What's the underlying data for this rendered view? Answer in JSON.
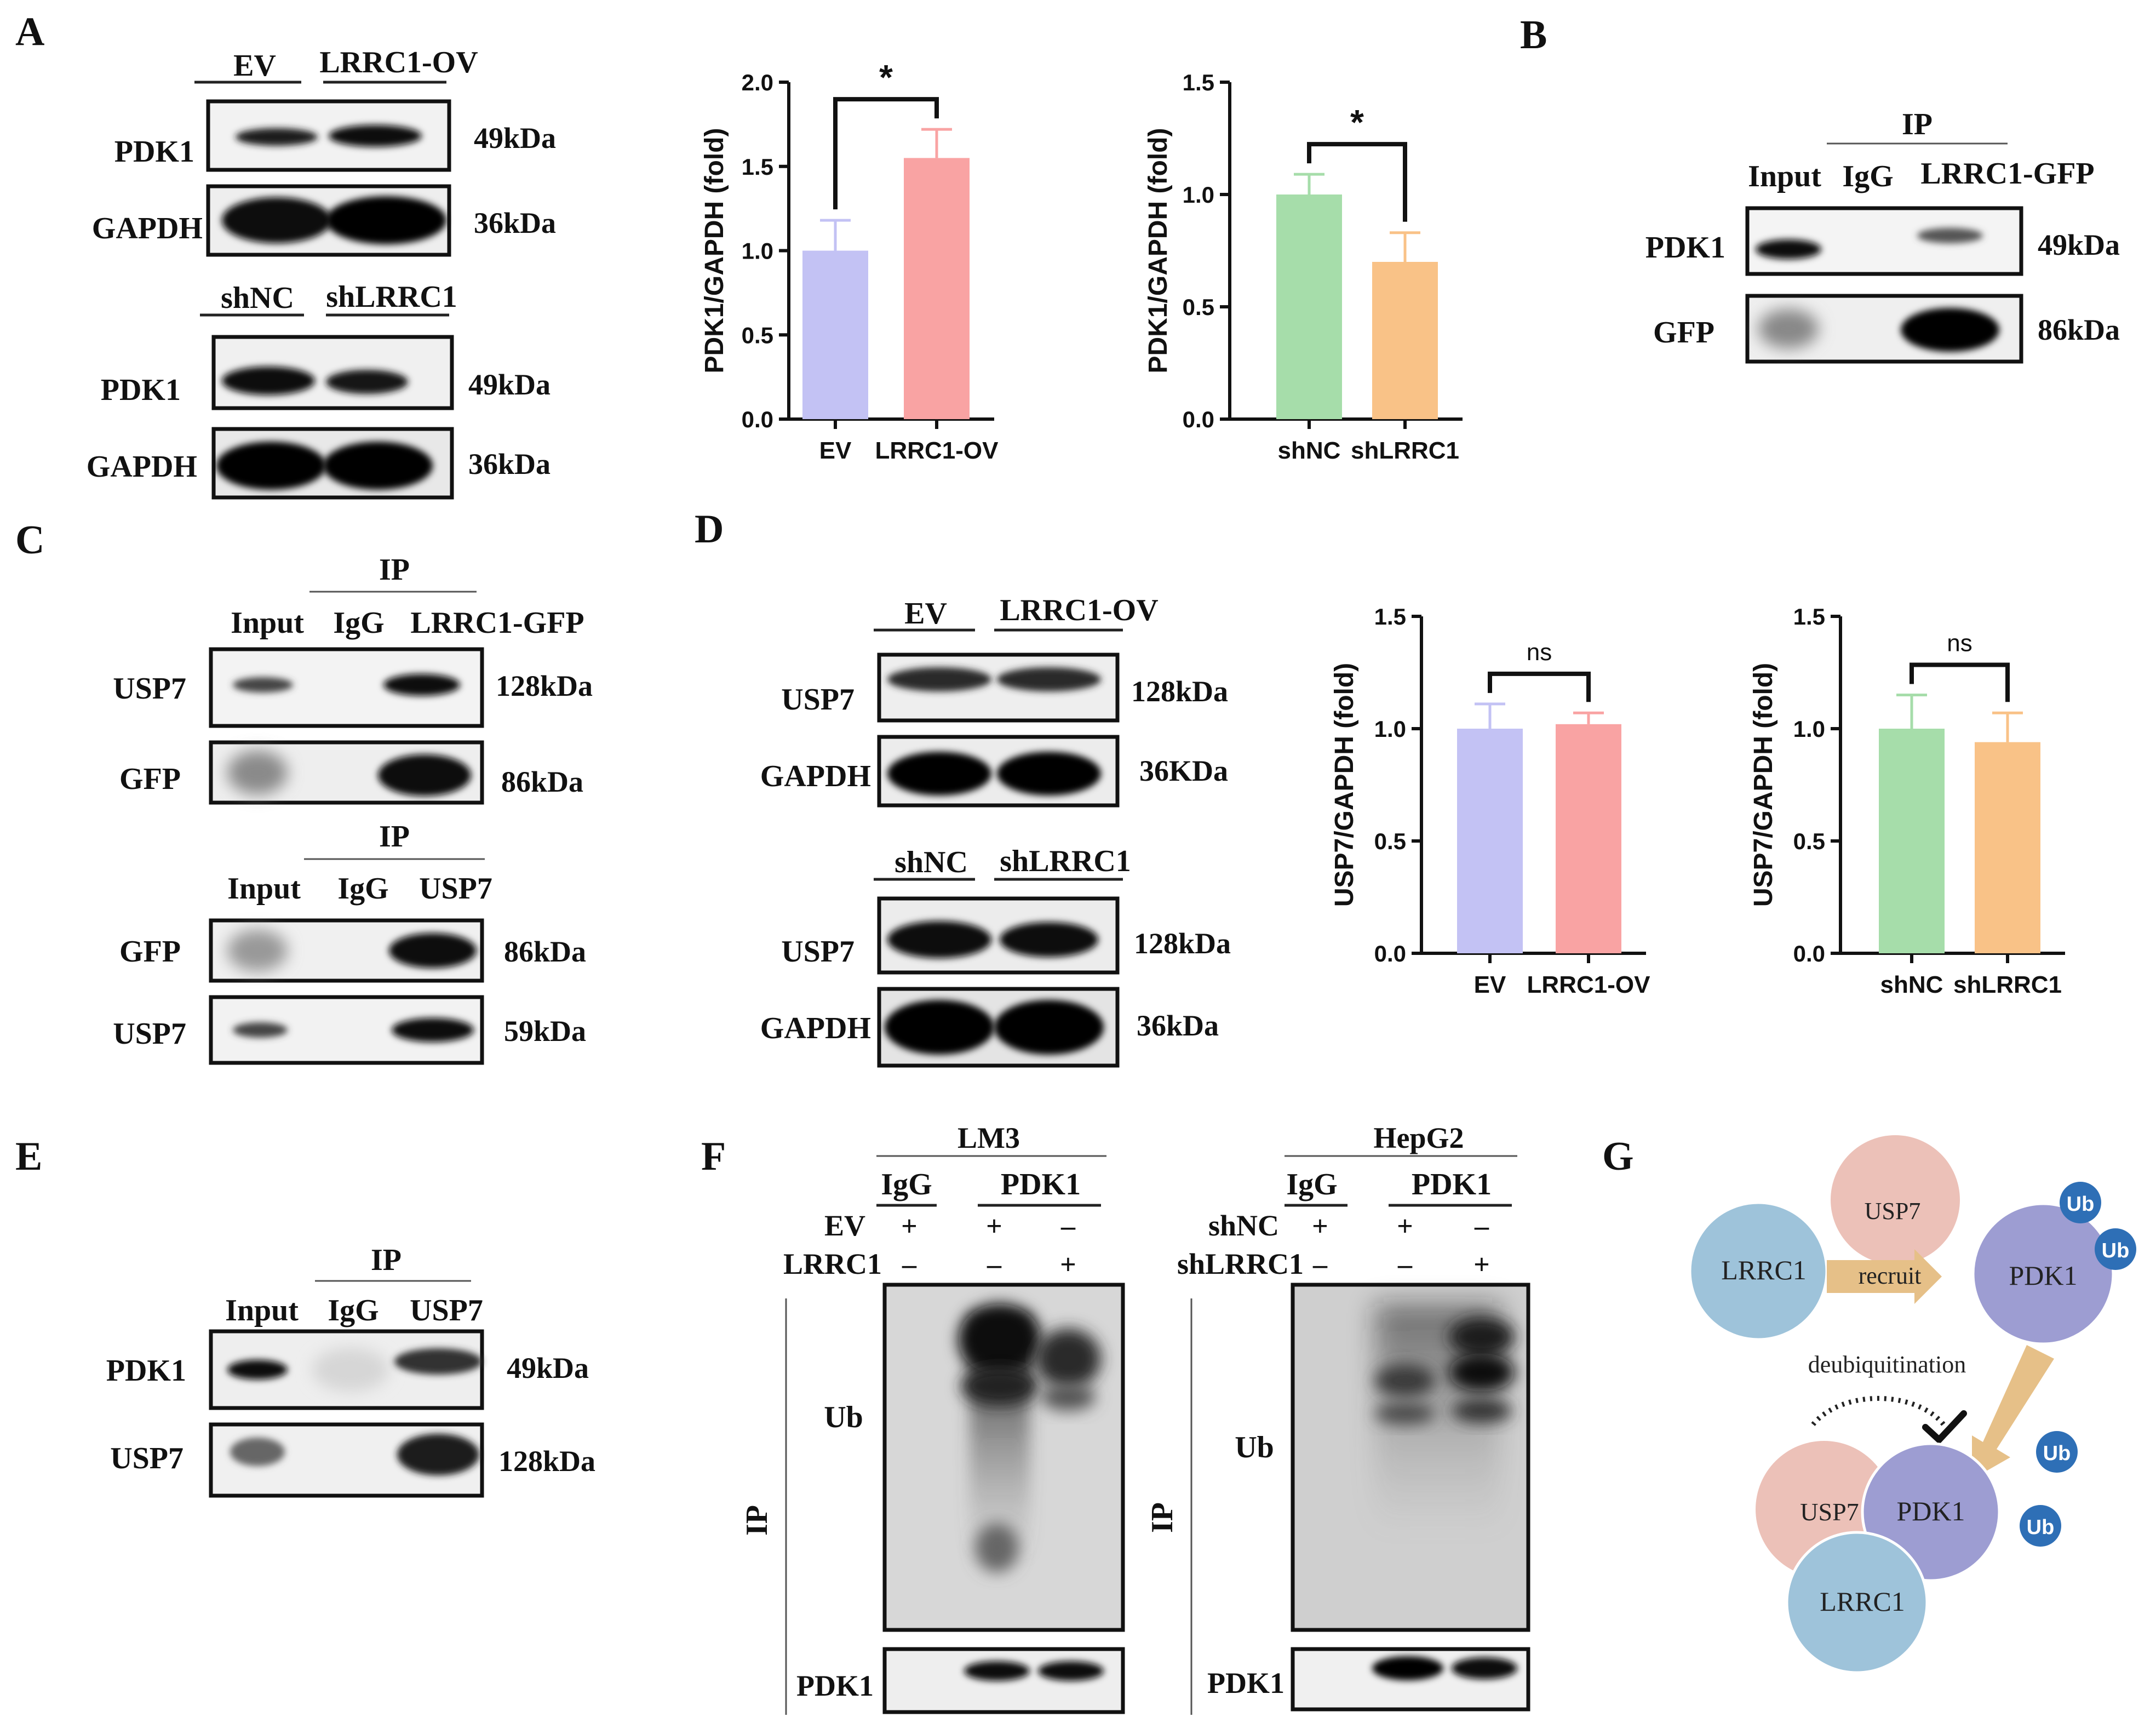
{
  "panel_letters": {
    "A": "A",
    "B": "B",
    "C": "C",
    "D": "D",
    "E": "E",
    "F": "F",
    "G": "G"
  },
  "panel_a": {
    "blot1": {
      "col1": "EV",
      "col2": "LRRC1-OV",
      "row1": "PDK1",
      "row2": "GAPDH",
      "size1": "49kDa",
      "size2": "36kDa"
    },
    "blot2": {
      "col1": "shNC",
      "col2": "shLRRC1",
      "row1": "PDK1",
      "row2": "GAPDH",
      "size1": "49kDa",
      "size2": "36kDa"
    }
  },
  "panel_b": {
    "ip": "IP",
    "lane1": "Input",
    "lane2": "IgG",
    "lane3": "LRRC1-GFP",
    "row1": "PDK1",
    "row2": "GFP",
    "size1": "49kDa",
    "size2": "86kDa"
  },
  "panel_c": {
    "blot1": {
      "ip": "IP",
      "lane1": "Input",
      "lane2": "IgG",
      "lane3": "LRRC1-GFP",
      "row1": "USP7",
      "row2": "GFP",
      "size1": "128kDa",
      "size2": "86kDa"
    },
    "blot2": {
      "ip": "IP",
      "lane1": "Input",
      "lane2": "IgG",
      "lane3": "USP7",
      "row1": "GFP",
      "row2": "USP7",
      "size1": "86kDa",
      "size2": "59kDa"
    }
  },
  "panel_d": {
    "blot1": {
      "col1": "EV",
      "col2": "LRRC1-OV",
      "row1": "USP7",
      "row2": "GAPDH",
      "size1": "128kDa",
      "size2": "36KDa"
    },
    "blot2": {
      "col1": "shNC",
      "col2": "shLRRC1",
      "row1": "USP7",
      "row2": "GAPDH",
      "size1": "128kDa",
      "size2": "36kDa"
    }
  },
  "panel_e": {
    "ip": "IP",
    "lane1": "Input",
    "lane2": "IgG",
    "lane3": "USP7",
    "row1": "PDK1",
    "row2": "USP7",
    "size1": "49kDa",
    "size2": "128kDa"
  },
  "panel_f": {
    "lm3": {
      "cell": "LM3",
      "ab1": "IgG",
      "ab2": "PDK1",
      "cond1": "EV",
      "cond2": "LRRC1",
      "cond1_signs": [
        "+",
        "+",
        "–"
      ],
      "cond2_signs": [
        "–",
        "–",
        "+"
      ],
      "ub": "Ub",
      "ip": "IP",
      "bottom": "PDK1"
    },
    "hepg2": {
      "cell": "HepG2",
      "ab1": "IgG",
      "ab2": "PDK1",
      "cond1": "shNC",
      "cond2": "shLRRC1",
      "cond1_signs": [
        "+",
        "+",
        "–"
      ],
      "cond2_signs": [
        "–",
        "–",
        "+"
      ],
      "ub": "Ub",
      "ip": "IP",
      "bottom": "PDK1"
    }
  },
  "panel_g": {
    "lrrc1": "LRRC1",
    "usp7": "USP7",
    "pdk1": "PDK1",
    "recruit": "recruit",
    "deubiq": "deubiquitination",
    "ub": "Ub",
    "colors": {
      "lrrc1": "#9ec3da",
      "usp7": "#ecc1b8",
      "pdk1": "#9d9dd2",
      "arrow": "#e6c088",
      "ub": "#2e6fb6"
    }
  },
  "chart_data": [
    {
      "type": "bar",
      "ylabel": "PDK1/GAPDH (fold)",
      "categories": [
        "EV",
        "LRRC1-OV"
      ],
      "values": [
        1.0,
        1.55
      ],
      "errors": [
        0.18,
        0.17
      ],
      "ylim": [
        0,
        2.0
      ],
      "yticks": [
        "0.0",
        "0.5",
        "1.0",
        "1.5",
        "2.0"
      ],
      "significance": "*",
      "colors": [
        "#c3c2f4",
        "#f9a3a3"
      ]
    },
    {
      "type": "bar",
      "ylabel": "PDK1/GAPDH (fold)",
      "categories": [
        "shNC",
        "shLRRC1"
      ],
      "values": [
        1.0,
        0.7
      ],
      "errors": [
        0.09,
        0.13
      ],
      "ylim": [
        0,
        1.5
      ],
      "yticks": [
        "0.0",
        "0.5",
        "1.0",
        "1.5"
      ],
      "significance": "*",
      "colors": [
        "#a6ddaa",
        "#f9c287"
      ]
    },
    {
      "type": "bar",
      "ylabel": "USP7/GAPDH (fold)",
      "categories": [
        "EV",
        "LRRC1-OV"
      ],
      "values": [
        1.0,
        1.02
      ],
      "errors": [
        0.11,
        0.05
      ],
      "ylim": [
        0,
        1.5
      ],
      "yticks": [
        "0.0",
        "0.5",
        "1.0",
        "1.5"
      ],
      "significance": "ns",
      "colors": [
        "#c3c2f4",
        "#f9a3a3"
      ]
    },
    {
      "type": "bar",
      "ylabel": "USP7/GAPDH (fold)",
      "categories": [
        "shNC",
        "shLRRC1"
      ],
      "values": [
        1.0,
        0.94
      ],
      "errors": [
        0.15,
        0.13
      ],
      "ylim": [
        0,
        1.5
      ],
      "yticks": [
        "0.0",
        "0.5",
        "1.0",
        "1.5"
      ],
      "significance": "ns",
      "colors": [
        "#a6ddaa",
        "#f9c287"
      ]
    }
  ]
}
